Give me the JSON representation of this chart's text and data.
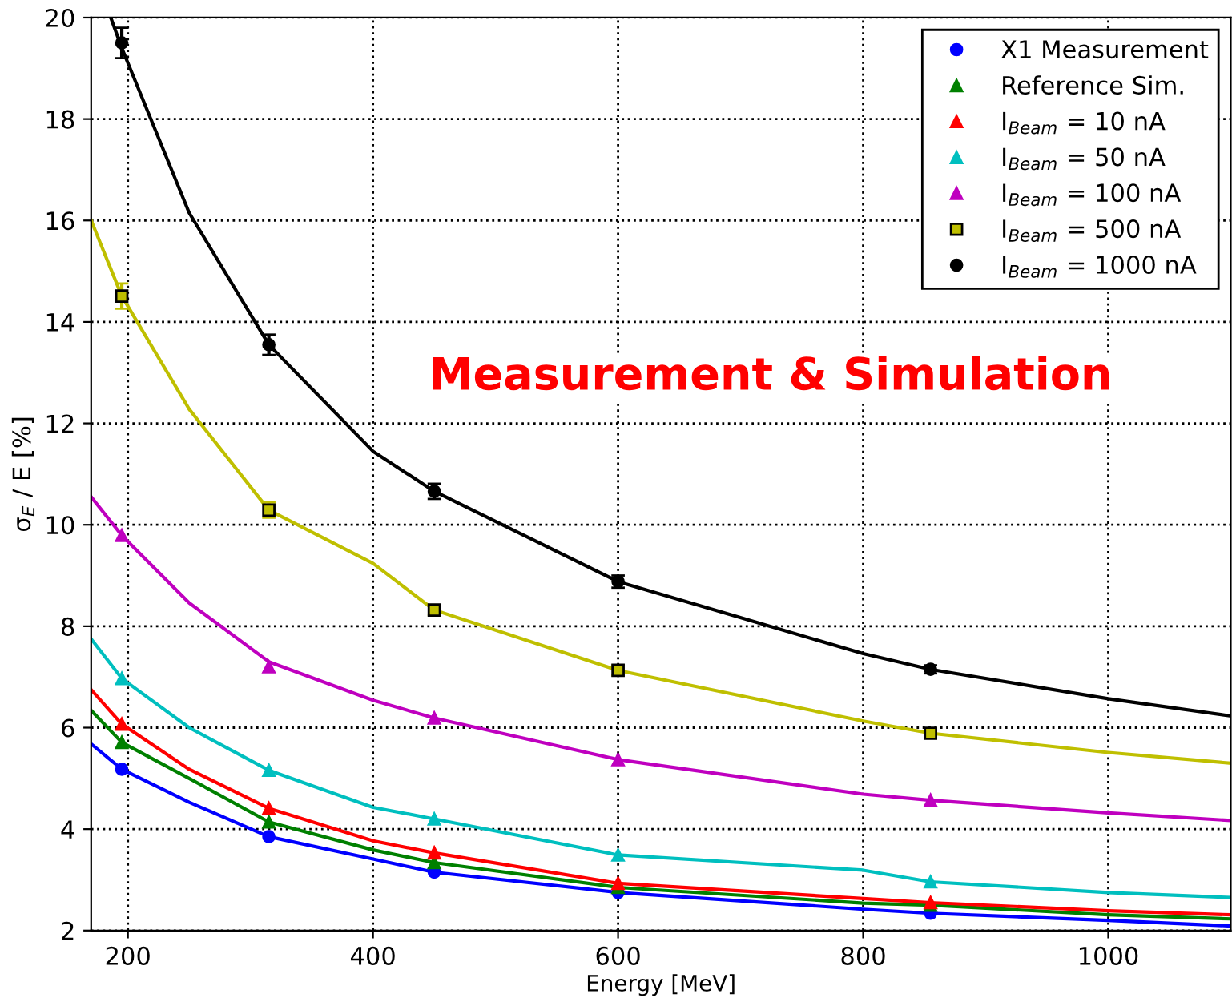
{
  "chart_data": {
    "type": "scatter",
    "xlabel": "Energy [MeV]",
    "ylabel": "σ$_{E}$ / E [%]",
    "annotations": [
      "Measurement & Simulation"
    ],
    "xlim": [
      170,
      1100
    ],
    "xticks": [
      200,
      400,
      600,
      800,
      1000
    ],
    "ylim": [
      2,
      20
    ],
    "yticks": [
      2,
      4,
      6,
      8,
      10,
      12,
      14,
      16,
      18,
      20
    ],
    "grid": true,
    "legend": "top right",
    "line_style": "solid",
    "series": [
      {
        "name": "X1 Measurement",
        "color": "#0000ff",
        "marker": "circle",
        "x": [
          195,
          315,
          450,
          600,
          855
        ],
        "values": [
          5.18,
          3.85,
          3.15,
          2.75,
          2.34
        ]
      },
      {
        "name": "Reference Sim.",
        "color": "#008000",
        "marker": "triangle",
        "x": [
          195,
          315,
          450,
          600,
          855
        ],
        "values": [
          5.71,
          4.14,
          3.34,
          2.85,
          2.5
        ]
      },
      {
        "name": "I$_{Beam}$ = 10 nA",
        "color": "#ff0000",
        "marker": "triangle",
        "x": [
          195,
          315,
          450,
          600,
          855
        ],
        "values": [
          6.07,
          4.41,
          3.53,
          2.93,
          2.55
        ]
      },
      {
        "name": "I$_{Beam}$ = 50 nA",
        "color": "#00bfbf",
        "marker": "triangle",
        "x": [
          195,
          315,
          450,
          600,
          855
        ],
        "values": [
          6.97,
          5.16,
          4.2,
          3.49,
          2.96
        ]
      },
      {
        "name": "I$_{Beam}$ = 100 nA",
        "color": "#bf00bf",
        "marker": "triangle",
        "x": [
          195,
          315,
          450,
          600,
          855
        ],
        "values": [
          9.79,
          7.2,
          6.19,
          5.37,
          4.57
        ]
      },
      {
        "name": "I$_{Beam}$ = 500 nA",
        "color": "#bfbf00",
        "marker": "square",
        "x": [
          195,
          315,
          450,
          600,
          855
        ],
        "values": [
          14.51,
          10.29,
          8.32,
          7.13,
          5.89
        ],
        "errors": [
          0.25,
          0.15,
          0.1,
          0.1,
          0.08
        ]
      },
      {
        "name": "I$_{Beam}$ = 1000 nA",
        "color": "#000000",
        "marker": "circle",
        "x": [
          195,
          315,
          450,
          600,
          855
        ],
        "values": [
          19.5,
          13.55,
          10.66,
          8.88,
          7.15
        ],
        "errors": [
          0.3,
          0.2,
          0.15,
          0.12,
          0.08
        ]
      },
      {
        "type": "line",
        "color": "#0000ff",
        "x": [
          170,
          195,
          250,
          315,
          400,
          450,
          600,
          800,
          855,
          1000,
          1100
        ],
        "values": [
          5.68,
          5.18,
          4.53,
          3.85,
          3.41,
          3.15,
          2.75,
          2.42,
          2.34,
          2.2,
          2.09
        ]
      },
      {
        "type": "line",
        "color": "#008000",
        "x": [
          170,
          195,
          250,
          315,
          400,
          450,
          600,
          800,
          855,
          1000,
          1100
        ],
        "values": [
          6.34,
          5.71,
          5.0,
          4.14,
          3.59,
          3.34,
          2.85,
          2.54,
          2.5,
          2.31,
          2.23
        ]
      },
      {
        "type": "line",
        "color": "#ff0000",
        "x": [
          170,
          195,
          250,
          315,
          400,
          450,
          600,
          800,
          855,
          1000,
          1100
        ],
        "values": [
          6.75,
          6.07,
          5.18,
          4.41,
          3.77,
          3.53,
          2.93,
          2.63,
          2.55,
          2.39,
          2.31
        ]
      },
      {
        "type": "line",
        "color": "#00bfbf",
        "x": [
          170,
          195,
          250,
          315,
          400,
          450,
          600,
          800,
          855,
          1000,
          1100
        ],
        "values": [
          7.75,
          6.97,
          6.0,
          5.16,
          4.43,
          4.2,
          3.49,
          3.19,
          2.96,
          2.75,
          2.65
        ]
      },
      {
        "type": "line",
        "color": "#bf00bf",
        "x": [
          170,
          195,
          250,
          315,
          400,
          450,
          600,
          800,
          855,
          1000,
          1100
        ],
        "values": [
          10.55,
          9.79,
          8.46,
          7.3,
          6.54,
          6.19,
          5.37,
          4.69,
          4.57,
          4.32,
          4.17
        ]
      },
      {
        "type": "line",
        "color": "#bfbf00",
        "x": [
          170,
          195,
          250,
          315,
          400,
          450,
          600,
          800,
          855,
          1000,
          1100
        ],
        "values": [
          16.0,
          14.51,
          12.28,
          10.29,
          9.24,
          8.32,
          7.13,
          6.13,
          5.89,
          5.51,
          5.3
        ]
      },
      {
        "type": "line",
        "color": "#000000",
        "x": [
          186,
          195,
          250,
          315,
          400,
          450,
          600,
          800,
          855,
          1000,
          1100
        ],
        "values": [
          20.0,
          19.4,
          16.15,
          13.55,
          11.45,
          10.66,
          8.88,
          7.46,
          7.15,
          6.57,
          6.23
        ]
      }
    ]
  }
}
